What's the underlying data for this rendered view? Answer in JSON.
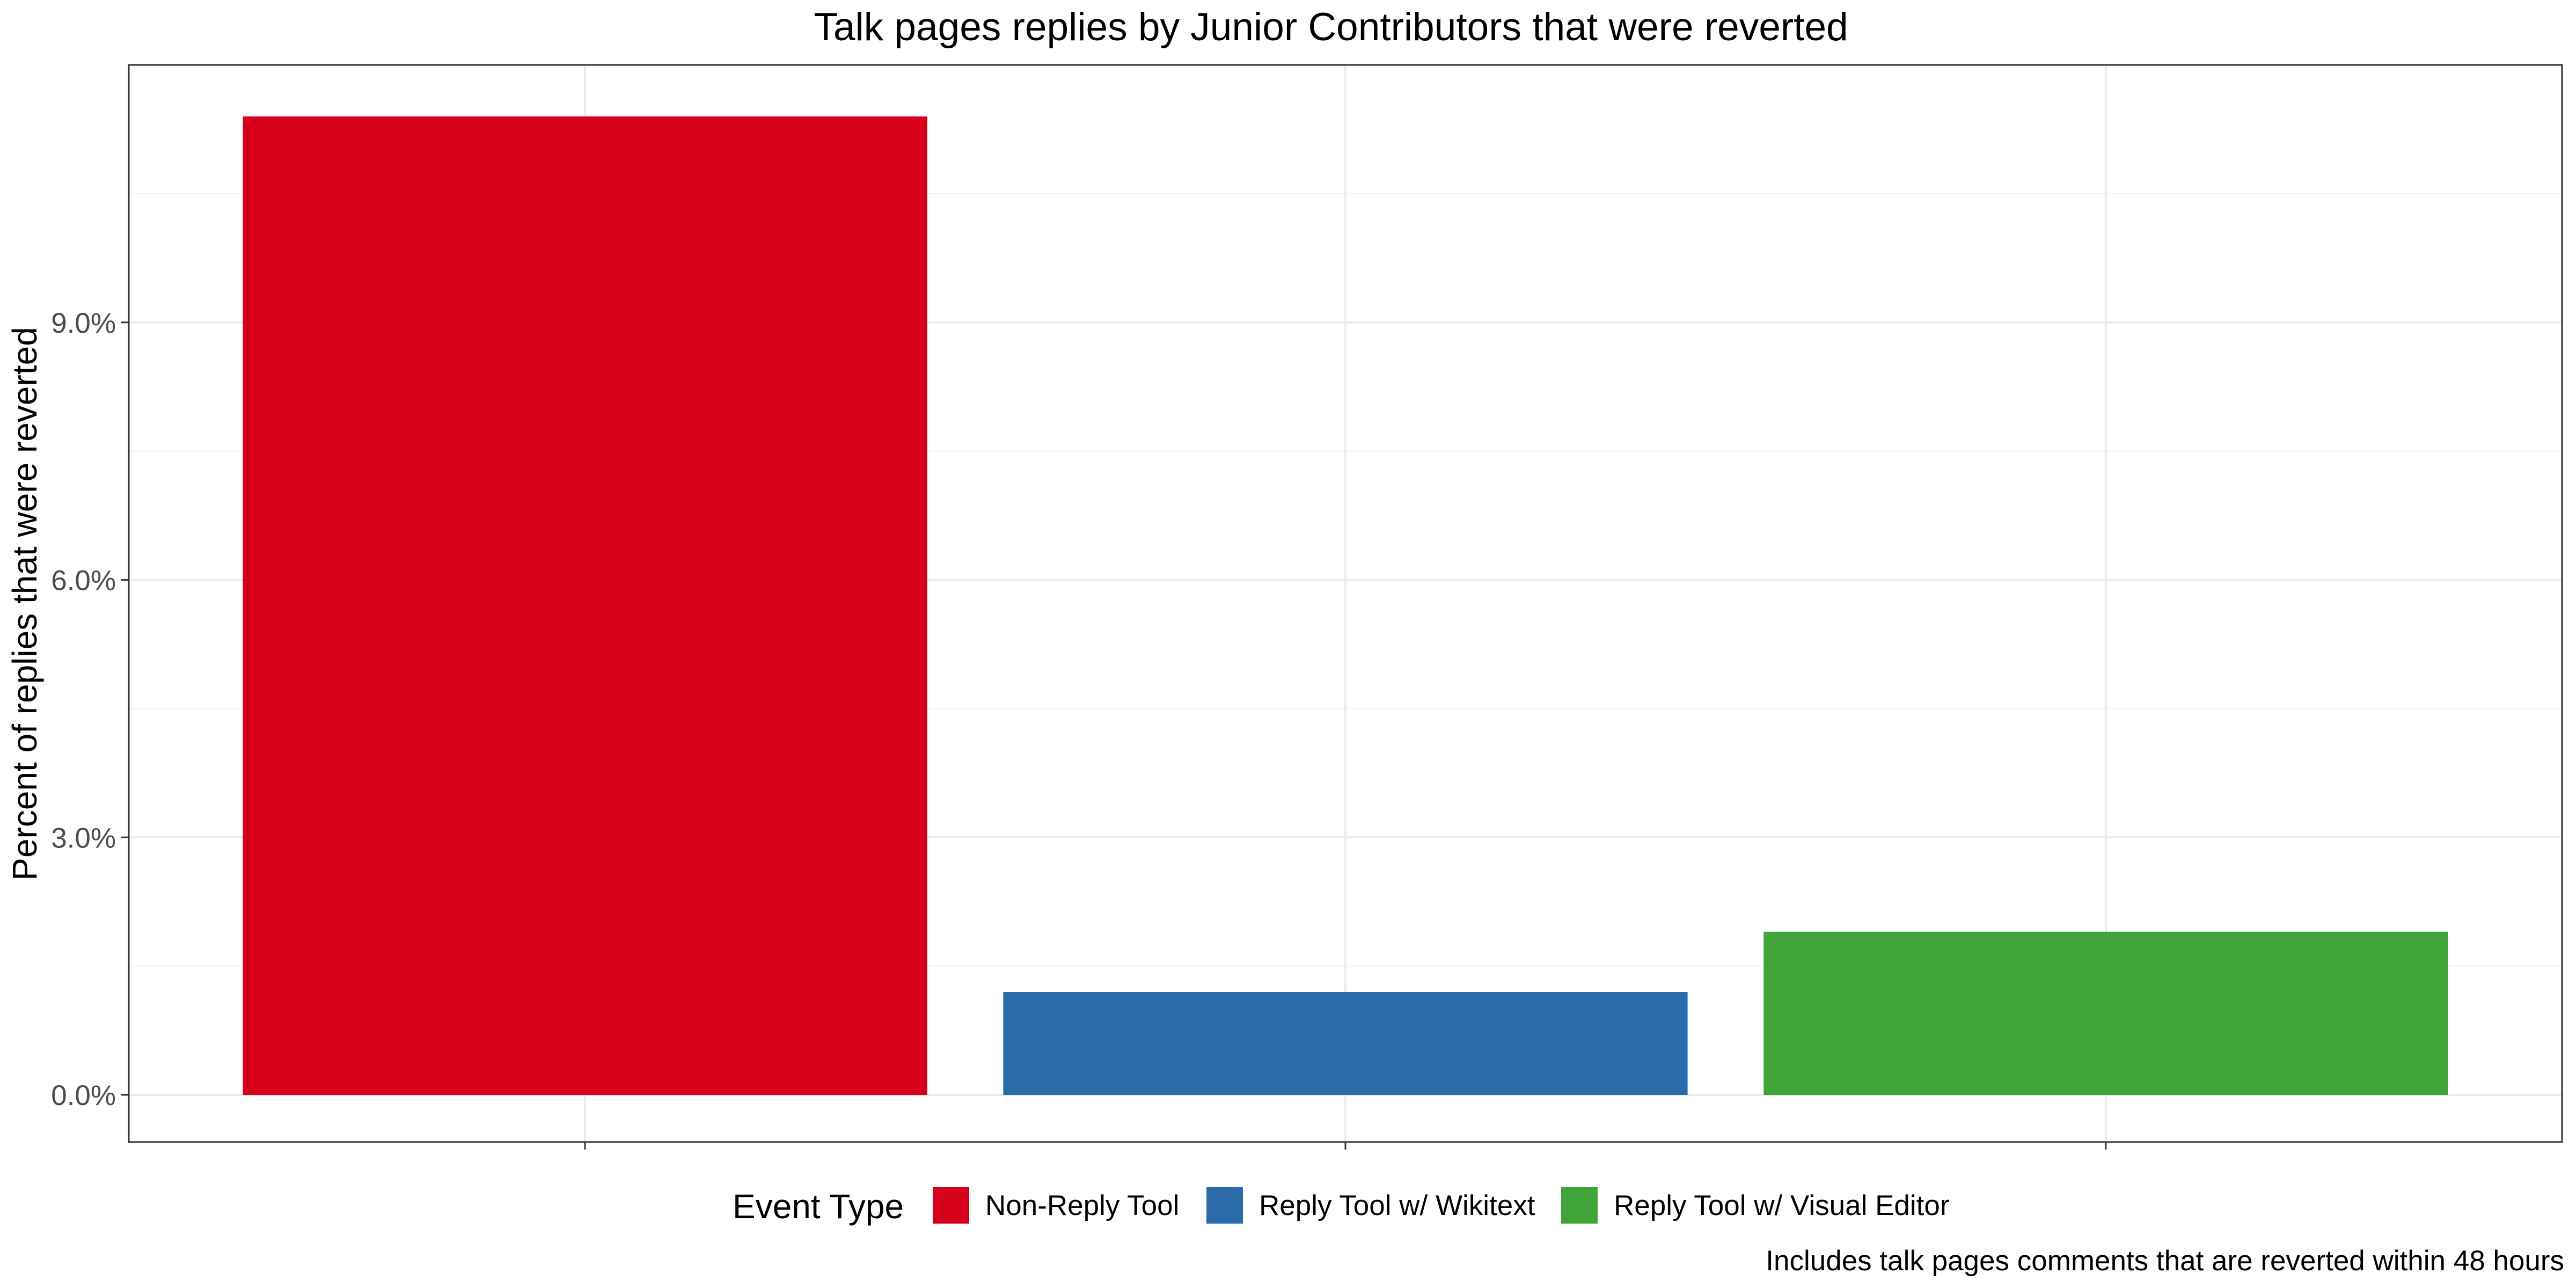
{
  "chart_data": {
    "type": "bar",
    "title": "Talk pages replies by Junior Contributors that were reverted",
    "xlabel": "",
    "ylabel": "Percent of replies that were reverted",
    "caption": "Includes talk pages comments that are reverted within 48 hours",
    "categories": [
      "Non-Reply Tool",
      "Reply Tool w/ Wikitext",
      "Reply Tool w/ Visual Editor"
    ],
    "values": [
      11.4,
      1.2,
      1.9
    ],
    "colors": [
      "#d7001a",
      "#2c6ba9",
      "#40a43a"
    ],
    "ylim": [
      -0.55,
      12.0
    ],
    "yticks": [
      0,
      3,
      6,
      9
    ],
    "ytick_labels": [
      "0.0%",
      "3.0%",
      "6.0%",
      "9.0%"
    ],
    "grid": true,
    "legend": {
      "title": "Event Type",
      "position": "bottom",
      "entries": [
        "Non-Reply Tool",
        "Reply Tool w/ Wikitext",
        "Reply Tool w/ Visual Editor"
      ]
    }
  }
}
